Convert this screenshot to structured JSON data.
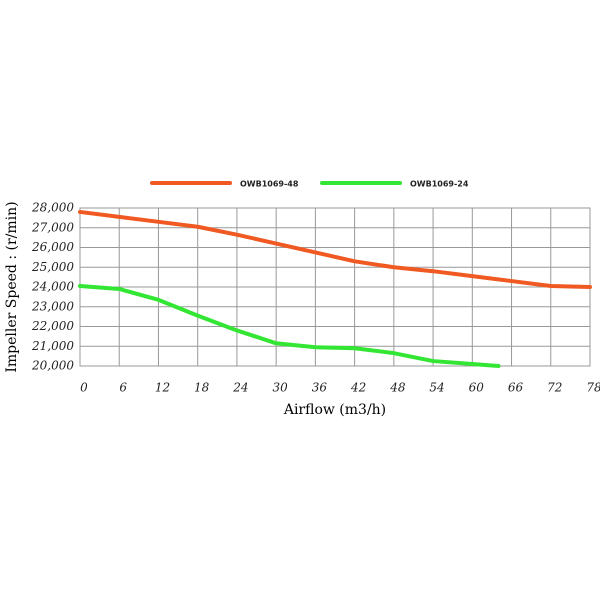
{
  "chart_data": {
    "type": "line",
    "x_label": "Airflow (m3/h)",
    "y_label": "Impeller  Speed : (r/min)",
    "xlim": [
      0,
      78
    ],
    "xticks": [
      0,
      6,
      12,
      18,
      24,
      30,
      36,
      42,
      48,
      54,
      60,
      66,
      72,
      78
    ],
    "ylim": [
      20000,
      28000
    ],
    "yticks": [
      {
        "value": 20000,
        "label": "20,000"
      },
      {
        "value": 21000,
        "label": "21,000"
      },
      {
        "value": 22000,
        "label": "22,000"
      },
      {
        "value": 23000,
        "label": "23,000"
      },
      {
        "value": 24000,
        "label": "24,000"
      },
      {
        "value": 25000,
        "label": "25,000"
      },
      {
        "value": 26000,
        "label": "26,000"
      },
      {
        "value": 27000,
        "label": "27,000"
      },
      {
        "value": 28000,
        "label": "28,000"
      }
    ],
    "grid": true,
    "series": [
      {
        "name": "OWB1069-48",
        "color": "#f05a22",
        "x": [
          0,
          6,
          12,
          18,
          24,
          30,
          36,
          42,
          48,
          54,
          60,
          66,
          72,
          78
        ],
        "values": [
          27800,
          27550,
          27300,
          27050,
          26650,
          26200,
          25750,
          25300,
          25000,
          24800,
          24550,
          24300,
          24050,
          24000
        ]
      },
      {
        "name": "OWB1069-24",
        "color": "#33e633",
        "x": [
          0,
          6,
          12,
          18,
          24,
          30,
          36,
          42,
          48,
          54,
          60,
          64
        ],
        "values": [
          24050,
          23900,
          23350,
          22550,
          21800,
          21150,
          20950,
          20900,
          20650,
          20250,
          20100,
          20000
        ]
      }
    ]
  }
}
